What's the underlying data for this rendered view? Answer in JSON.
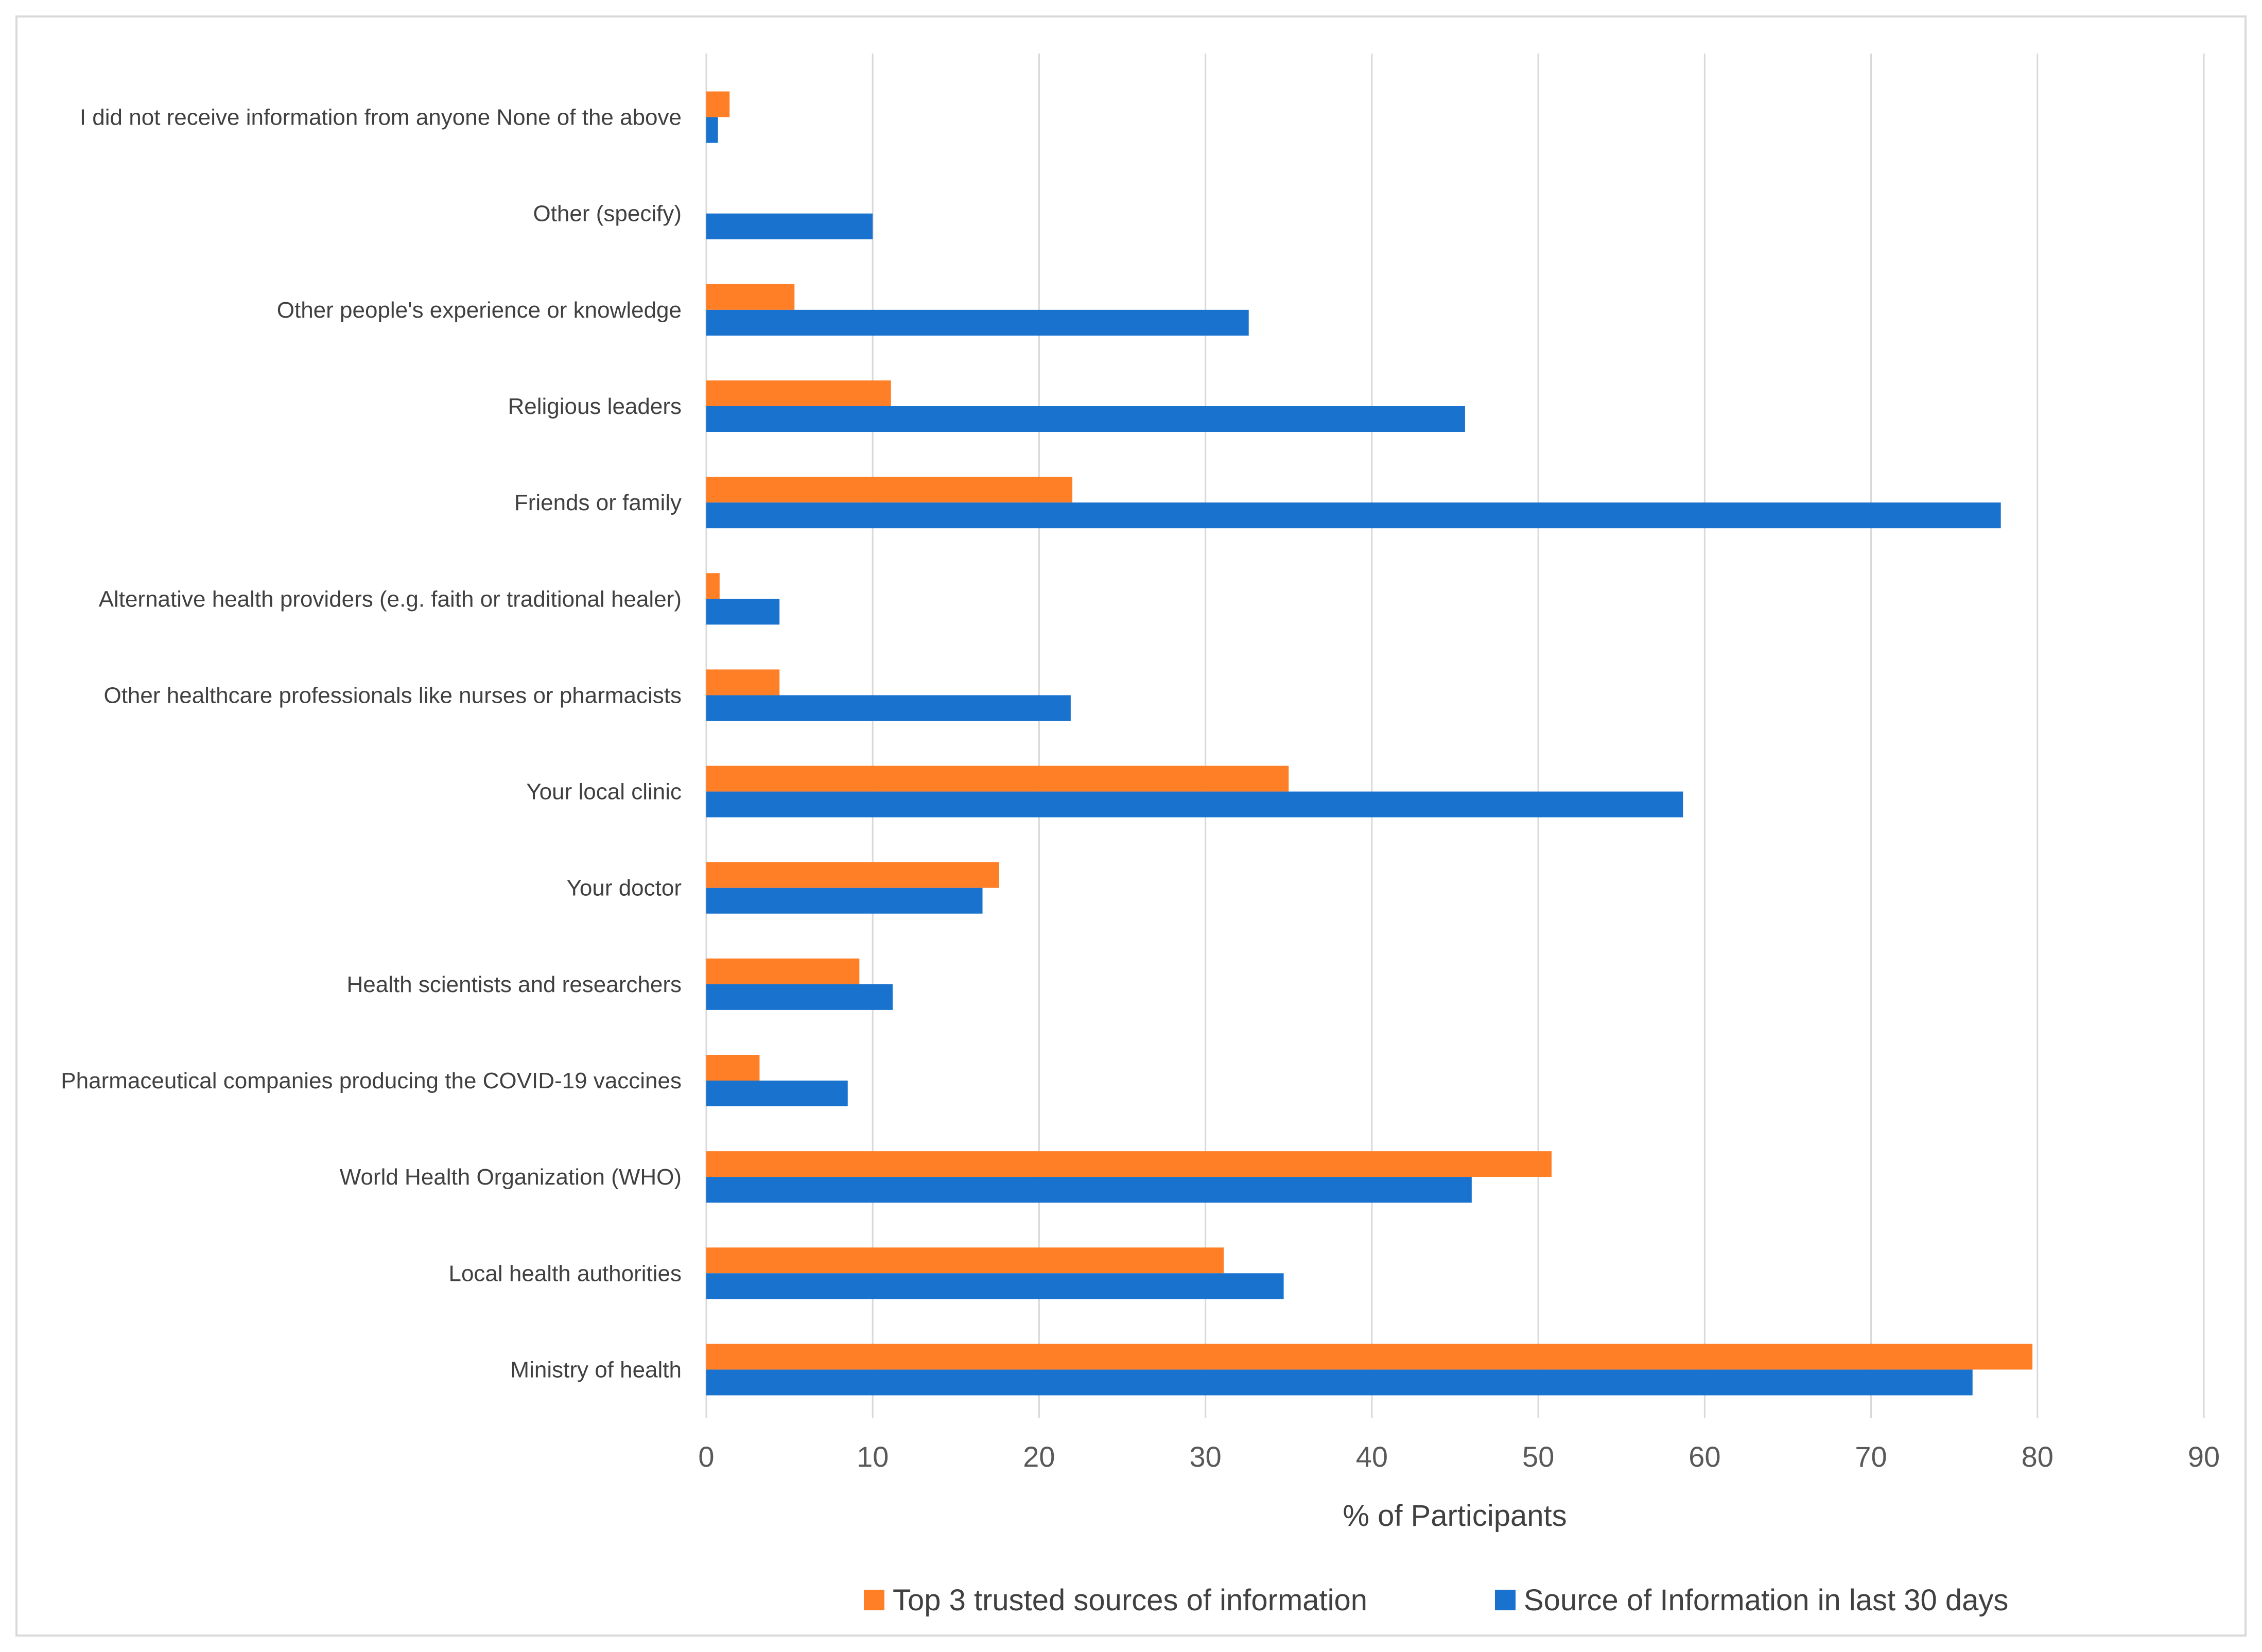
{
  "chart_data": {
    "type": "bar",
    "orientation": "horizontal",
    "title": "",
    "xlabel": "% of Participants",
    "ylabel": "",
    "xlim": [
      0,
      90
    ],
    "xticks": [
      0,
      10,
      20,
      30,
      40,
      50,
      60,
      70,
      80,
      90
    ],
    "grid": true,
    "legend_position": "bottom",
    "categories": [
      "I did not receive information from anyone None of the above",
      "Other (specify)",
      "Other people's experience or knowledge",
      "Religious leaders",
      "Friends or family",
      "Alternative health providers (e.g. faith or traditional healer)",
      "Other healthcare professionals like nurses or pharmacists",
      "Your local clinic",
      "Your doctor",
      "Health scientists and researchers",
      "Pharmaceutical companies producing the COVID-19 vaccines",
      "World Health Organization (WHO)",
      "Local health authorities",
      "Ministry of health"
    ],
    "series": [
      {
        "name": "Top 3 trusted sources of information",
        "color": "#FF7F27",
        "values": [
          1.4,
          0,
          5.3,
          11.1,
          22.0,
          0.8,
          4.4,
          35.0,
          17.6,
          9.2,
          3.2,
          50.8,
          31.1,
          79.7
        ]
      },
      {
        "name": "Source of Information in last 30 days",
        "color": "#1872CE",
        "values": [
          0.7,
          10.0,
          32.6,
          45.6,
          77.8,
          4.4,
          21.9,
          58.7,
          16.6,
          11.2,
          8.5,
          46.0,
          34.7,
          76.1
        ]
      }
    ]
  }
}
